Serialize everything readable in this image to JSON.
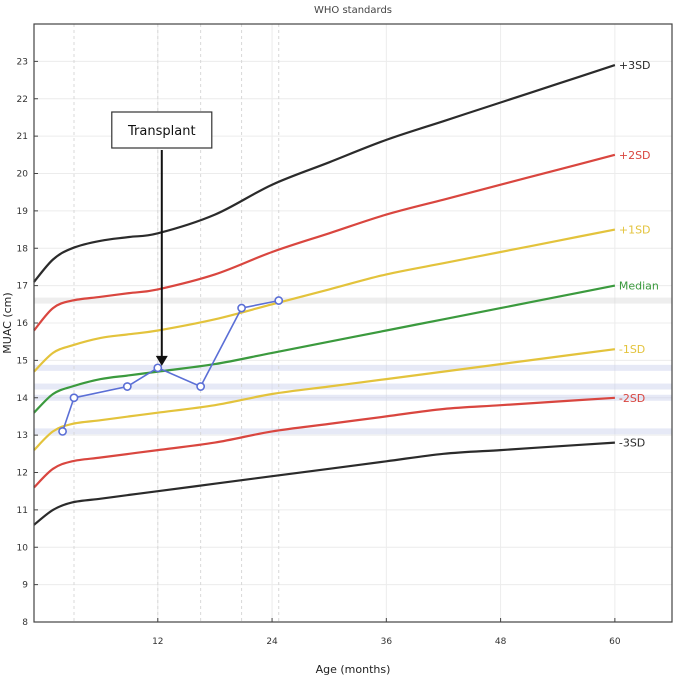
{
  "chart_data": {
    "type": "line",
    "title": "WHO standards",
    "xlabel": "Age (months)",
    "ylabel": "MUAC (cm)",
    "xlim": [
      -1,
      66
    ],
    "ylim": [
      8,
      24
    ],
    "xticks": [
      12,
      24,
      36,
      48,
      60
    ],
    "yticks": [
      8,
      9,
      10,
      11,
      12,
      13,
      14,
      15,
      16,
      17,
      18,
      19,
      20,
      21,
      22,
      23
    ],
    "grid": true,
    "legend": "none",
    "reference_curves": [
      {
        "name": "+3SD",
        "color": "#2b2b2b",
        "x": [
          -1,
          1,
          3,
          6,
          9,
          12,
          18,
          24,
          30,
          36,
          42,
          48,
          54,
          60
        ],
        "y": [
          17.1,
          17.7,
          18.0,
          18.2,
          18.3,
          18.4,
          18.9,
          19.7,
          20.3,
          20.9,
          21.4,
          21.9,
          22.4,
          22.9
        ]
      },
      {
        "name": "+2SD",
        "color": "#d9463f",
        "x": [
          -1,
          1,
          3,
          6,
          9,
          12,
          18,
          24,
          30,
          36,
          42,
          48,
          54,
          60
        ],
        "y": [
          15.8,
          16.4,
          16.6,
          16.7,
          16.8,
          16.9,
          17.3,
          17.9,
          18.4,
          18.9,
          19.3,
          19.7,
          20.1,
          20.5
        ]
      },
      {
        "name": "+1SD",
        "color": "#e3c33c",
        "x": [
          -1,
          1,
          3,
          6,
          9,
          12,
          18,
          24,
          30,
          36,
          42,
          48,
          54,
          60
        ],
        "y": [
          14.7,
          15.2,
          15.4,
          15.6,
          15.7,
          15.8,
          16.1,
          16.5,
          16.9,
          17.3,
          17.6,
          17.9,
          18.2,
          18.5
        ]
      },
      {
        "name": "Median",
        "color": "#3b9a3e",
        "x": [
          -1,
          1,
          3,
          6,
          9,
          12,
          18,
          24,
          30,
          36,
          42,
          48,
          54,
          60
        ],
        "y": [
          13.6,
          14.1,
          14.3,
          14.5,
          14.6,
          14.7,
          14.9,
          15.2,
          15.5,
          15.8,
          16.1,
          16.4,
          16.7,
          17.0
        ]
      },
      {
        "name": "-1SD",
        "color": "#e3c33c",
        "x": [
          -1,
          1,
          3,
          6,
          9,
          12,
          18,
          24,
          30,
          36,
          42,
          48,
          54,
          60
        ],
        "y": [
          12.6,
          13.1,
          13.3,
          13.4,
          13.5,
          13.6,
          13.8,
          14.1,
          14.3,
          14.5,
          14.7,
          14.9,
          15.1,
          15.3
        ]
      },
      {
        "name": "-2SD",
        "color": "#d9463f",
        "x": [
          -1,
          1,
          3,
          6,
          9,
          12,
          18,
          24,
          30,
          36,
          42,
          48,
          54,
          60
        ],
        "y": [
          11.6,
          12.1,
          12.3,
          12.4,
          12.5,
          12.6,
          12.8,
          13.1,
          13.3,
          13.5,
          13.7,
          13.8,
          13.9,
          14.0
        ]
      },
      {
        "name": "-3SD",
        "color": "#2b2b2b",
        "x": [
          -1,
          1,
          3,
          6,
          9,
          12,
          18,
          24,
          30,
          36,
          42,
          48,
          54,
          60
        ],
        "y": [
          10.6,
          11.0,
          11.2,
          11.3,
          11.4,
          11.5,
          11.7,
          11.9,
          12.1,
          12.3,
          12.5,
          12.6,
          12.7,
          12.8
        ]
      }
    ],
    "series": [
      {
        "color": "#5b6fd6",
        "x": [
          2,
          3.2,
          8.8,
          12,
          16.5,
          20.8,
          24.7
        ],
        "y": [
          13.1,
          14.0,
          14.3,
          14.8,
          14.3,
          16.4,
          16.6
        ]
      }
    ],
    "highlight_bands": [
      {
        "y": 16.6,
        "color": "#d9d9d9"
      },
      {
        "y": 14.8,
        "color": "#c8cfea"
      },
      {
        "y": 14.3,
        "color": "#c8cfea"
      },
      {
        "y": 14.0,
        "color": "#c8cfea"
      },
      {
        "y": 13.1,
        "color": "#c8cfea"
      }
    ],
    "vertical_guides": [
      3.2,
      12,
      16.5,
      20.8,
      24.7
    ],
    "annotation": {
      "text": "Transplant",
      "x": 12,
      "y": 14.8
    }
  }
}
